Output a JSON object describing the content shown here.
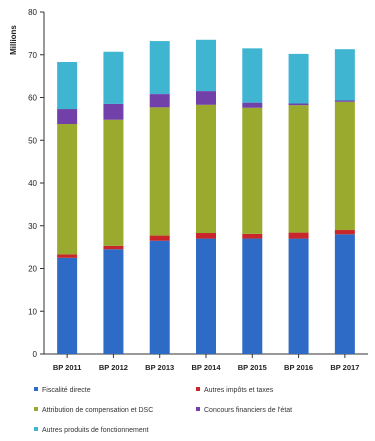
{
  "chart_data": {
    "type": "bar",
    "stacked": true,
    "ylabel": "Millions",
    "ylim": [
      0,
      80
    ],
    "yticks": [
      0,
      10,
      20,
      30,
      40,
      50,
      60,
      70,
      80
    ],
    "grid": false,
    "legend_position": "bottom",
    "categories": [
      "BP 2011",
      "BP 2012",
      "BP 2013",
      "BP 2014",
      "BP 2015",
      "BP 2016",
      "BP 2017"
    ],
    "series": [
      {
        "name": "Fiscalité directe",
        "color": "#2e6bc6",
        "values": [
          22.5,
          24.5,
          26.5,
          27,
          27,
          27,
          28
        ]
      },
      {
        "name": "Autres impôts et taxes",
        "color": "#c8262b",
        "values": [
          0.8,
          0.8,
          1.2,
          1.3,
          1.1,
          1.4,
          1.0
        ]
      },
      {
        "name": "Attribution de compensation et DSC",
        "color": "#9aaa2e",
        "values": [
          30.5,
          29.5,
          30,
          30,
          29.5,
          29.8,
          30
        ]
      },
      {
        "name": "Concours financiers de l'état",
        "color": "#7140a8",
        "values": [
          3.5,
          3.7,
          3.1,
          3.2,
          1.2,
          0.4,
          0.3
        ]
      },
      {
        "name": "Autres produits de fonctionnement",
        "color": "#3fb5d2",
        "values": [
          11,
          12.2,
          12.4,
          12,
          12.7,
          11.6,
          12
        ]
      }
    ]
  }
}
